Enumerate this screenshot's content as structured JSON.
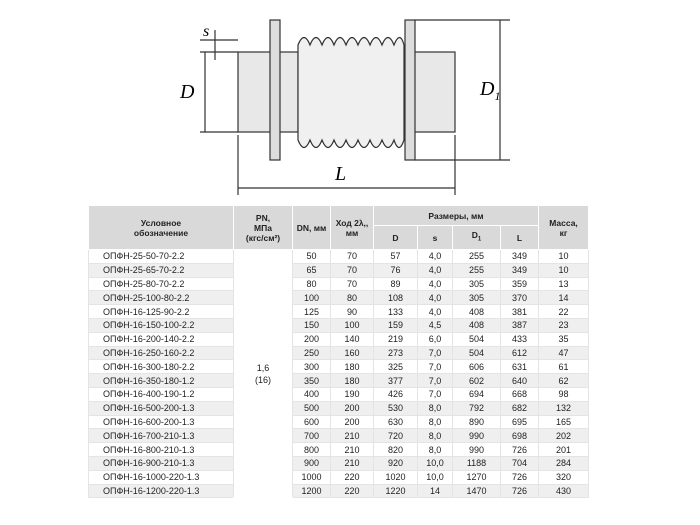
{
  "drawing": {
    "labels": {
      "s": "s",
      "D": "D",
      "D1": "D",
      "D1_sub": "1",
      "L": "L"
    }
  },
  "table": {
    "headers": {
      "name": "Условное обозначение",
      "pn_line1": "PN,",
      "pn_line2": "МПа",
      "pn_line3": "(кгс/см²)",
      "dn": "DN, мм",
      "stroke_line1": "Ход 2λ,,",
      "stroke_line2": "мм",
      "sizes": "Размеры, мм",
      "d": "D",
      "s": "s",
      "d1": "D",
      "d1_sub": "1",
      "l": "L",
      "mass_line1": "Масса,",
      "mass_line2": "кг"
    },
    "pn_value_line1": "1,6",
    "pn_value_line2": "(16)",
    "rows": [
      [
        "ОПФН-25-50-70-2.2",
        "50",
        "70",
        "57",
        "4,0",
        "255",
        "349",
        "10"
      ],
      [
        "ОПФН-25-65-70-2.2",
        "65",
        "70",
        "76",
        "4,0",
        "255",
        "349",
        "10"
      ],
      [
        "ОПФН-25-80-70-2.2",
        "80",
        "70",
        "89",
        "4,0",
        "305",
        "359",
        "13"
      ],
      [
        "ОПФН-25-100-80-2.2",
        "100",
        "80",
        "108",
        "4,0",
        "305",
        "370",
        "14"
      ],
      [
        "ОПФН-16-125-90-2.2",
        "125",
        "90",
        "133",
        "4,0",
        "408",
        "381",
        "22"
      ],
      [
        "ОПФН-16-150-100-2.2",
        "150",
        "100",
        "159",
        "4,5",
        "408",
        "387",
        "23"
      ],
      [
        "ОПФН-16-200-140-2.2",
        "200",
        "140",
        "219",
        "6,0",
        "504",
        "433",
        "35"
      ],
      [
        "ОПФН-16-250-160-2.2",
        "250",
        "160",
        "273",
        "7,0",
        "504",
        "612",
        "47"
      ],
      [
        "ОПФН-16-300-180-2.2",
        "300",
        "180",
        "325",
        "7,0",
        "606",
        "631",
        "61"
      ],
      [
        "ОПФН-16-350-180-1.2",
        "350",
        "180",
        "377",
        "7,0",
        "602",
        "640",
        "62"
      ],
      [
        "ОПФН-16-400-190-1.2",
        "400",
        "190",
        "426",
        "7,0",
        "694",
        "668",
        "98"
      ],
      [
        "ОПФН-16-500-200-1.3",
        "500",
        "200",
        "530",
        "8,0",
        "792",
        "682",
        "132"
      ],
      [
        "ОПФН-16-600-200-1.3",
        "600",
        "200",
        "630",
        "8,0",
        "890",
        "695",
        "165"
      ],
      [
        "ОПФН-16-700-210-1.3",
        "700",
        "210",
        "720",
        "8,0",
        "990",
        "698",
        "202"
      ],
      [
        "ОПФН-16-800-210-1.3",
        "800",
        "210",
        "820",
        "8,0",
        "990",
        "726",
        "201"
      ],
      [
        "ОПФН-16-900-210-1.3",
        "900",
        "210",
        "920",
        "10,0",
        "1188",
        "704",
        "284"
      ],
      [
        "ОПФН-16-1000-220-1.3",
        "1000",
        "220",
        "1020",
        "10,0",
        "1270",
        "726",
        "320"
      ],
      [
        "ОПФН-16-1200-220-1.3",
        "1200",
        "220",
        "1220",
        "14",
        "1470",
        "726",
        "430"
      ]
    ]
  }
}
